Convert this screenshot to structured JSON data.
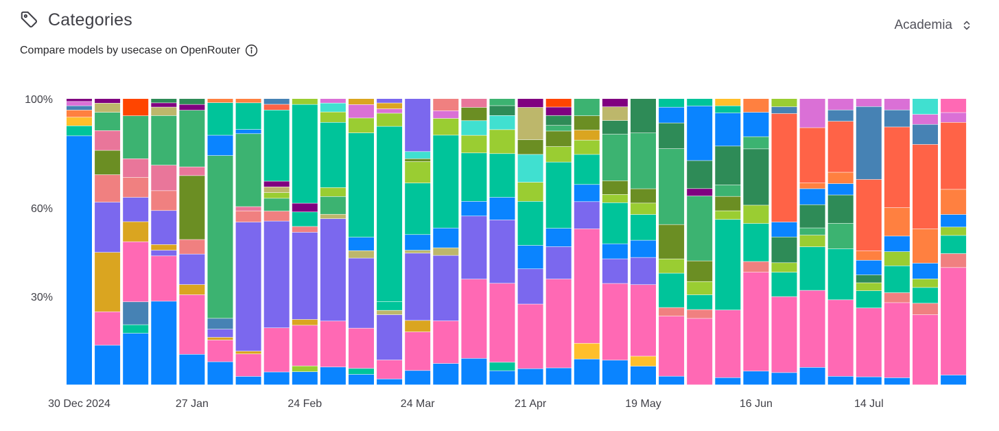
{
  "header": {
    "title": "Categories",
    "subtitle": "Compare models by usecase on OpenRouter"
  },
  "icons": {
    "title_icon": "tag-icon",
    "info_icon": "info-icon",
    "dropdown_icon": "chevron-up-down-icon"
  },
  "dropdown": {
    "selected": "Academia"
  },
  "colors": {
    "c1": "#0a84ff",
    "c2": "#ff69b4",
    "c3": "#7b68ee",
    "c4": "#00c49a",
    "c5": "#3cb371",
    "c6": "#2e8b57",
    "c7": "#6b8e23",
    "c8": "#9acd32",
    "c9": "#ff6347",
    "c10": "#f08080",
    "c11": "#4682b4",
    "c12": "#daa520",
    "c13": "#bdb76b",
    "c14": "#da70d6",
    "c15": "#40e0d0",
    "c16": "#800080",
    "c17": "#ff4500",
    "c18": "#e9769a",
    "c19": "#ffbf2b",
    "c20": "#ff8040"
  },
  "chart_data": {
    "type": "bar",
    "stacked": true,
    "percent": true,
    "ylim": [
      0,
      100
    ],
    "yticks": [
      "100%",
      "60%",
      "30%"
    ],
    "xlabels": [
      {
        "index": 0,
        "label": "30 Dec 2024"
      },
      {
        "index": 4,
        "label": "27 Jan"
      },
      {
        "index": 8,
        "label": "24 Feb"
      },
      {
        "index": 12,
        "label": "24 Mar"
      },
      {
        "index": 16,
        "label": "21 Apr"
      },
      {
        "index": 20,
        "label": "19 May"
      },
      {
        "index": 24,
        "label": "16 Jun"
      },
      {
        "index": 28,
        "label": "14 Jul"
      }
    ],
    "bars": [
      [
        [
          "c1",
          87
        ],
        [
          "c4",
          3.5
        ],
        [
          "c19",
          3
        ],
        [
          "c20",
          2.5
        ],
        [
          "c11",
          1.5
        ],
        [
          "c14",
          1.5
        ],
        [
          "c16",
          1
        ]
      ],
      [
        [
          "c1",
          13
        ],
        [
          "c2",
          11
        ],
        [
          "c12",
          19.5
        ],
        [
          "c3",
          16.5
        ],
        [
          "c10",
          9
        ],
        [
          "c7",
          8
        ],
        [
          "c18",
          6.5
        ],
        [
          "c5",
          6
        ],
        [
          "c13",
          3
        ],
        [
          "c16",
          1.5
        ]
      ],
      [
        [
          "c1",
          18
        ],
        [
          "c4",
          3
        ],
        [
          "c11",
          8
        ],
        [
          "c2",
          21
        ],
        [
          "c12",
          7
        ],
        [
          "c3",
          8.5
        ],
        [
          "c10",
          7
        ],
        [
          "c18",
          6.5
        ],
        [
          "c5",
          15
        ],
        [
          "c17",
          6
        ]
      ],
      [
        [
          "c1",
          29.5
        ],
        [
          "c2",
          16
        ],
        [
          "c3",
          2
        ],
        [
          "c12",
          2
        ],
        [
          "c3",
          12
        ],
        [
          "c10",
          7
        ],
        [
          "c18",
          9
        ],
        [
          "c5",
          17.5
        ],
        [
          "c13",
          3
        ],
        [
          "c16",
          1.5
        ],
        [
          "c6",
          1.5
        ]
      ],
      [
        [
          "c1",
          10.5
        ],
        [
          "c2",
          20.5
        ],
        [
          "c12",
          3.5
        ],
        [
          "c3",
          10.5
        ],
        [
          "c10",
          5
        ],
        [
          "c7",
          22
        ],
        [
          "c18",
          3
        ],
        [
          "c5",
          19.5
        ],
        [
          "c16",
          2
        ],
        [
          "c6",
          2
        ]
      ],
      [
        [
          "c1",
          8.5
        ],
        [
          "c2",
          8
        ],
        [
          "c12",
          1
        ],
        [
          "c3",
          3
        ],
        [
          "c11",
          4
        ],
        [
          "c5",
          60
        ],
        [
          "c1",
          7.5
        ],
        [
          "c4",
          12
        ],
        [
          "c20",
          1.5
        ]
      ],
      [
        [
          "c1",
          3
        ],
        [
          "c2",
          8
        ],
        [
          "c12",
          1
        ],
        [
          "c3",
          46
        ],
        [
          "c10",
          4
        ],
        [
          "c18",
          1.5
        ],
        [
          "c5",
          26
        ],
        [
          "c1",
          1.5
        ],
        [
          "c4",
          9.5
        ],
        [
          "c20",
          1.5
        ]
      ],
      [
        [
          "c1",
          4.5
        ],
        [
          "c2",
          15.5
        ],
        [
          "c3",
          37.5
        ],
        [
          "c10",
          3.5
        ],
        [
          "c5",
          4.5
        ],
        [
          "c8",
          2
        ],
        [
          "c13",
          2
        ],
        [
          "c16",
          2
        ],
        [
          "c4",
          25
        ],
        [
          "c9",
          2
        ],
        [
          "c11",
          2
        ]
      ],
      [
        [
          "c1",
          4.5
        ],
        [
          "c8",
          2
        ],
        [
          "c2",
          14
        ],
        [
          "c12",
          2
        ],
        [
          "c3",
          30
        ],
        [
          "c10",
          2
        ],
        [
          "c4",
          5
        ],
        [
          "c16",
          3
        ],
        [
          "c4",
          34
        ],
        [
          "c8",
          2
        ]
      ],
      [
        [
          "c1",
          6
        ],
        [
          "c2",
          15.5
        ],
        [
          "c3",
          34.5
        ],
        [
          "c13",
          1.5
        ],
        [
          "c5",
          6
        ],
        [
          "c8",
          3
        ],
        [
          "c4",
          22
        ],
        [
          "c8",
          3.5
        ],
        [
          "c15",
          3
        ],
        [
          "c14",
          1.5
        ]
      ],
      [
        [
          "c1",
          3.5
        ],
        [
          "c4",
          2
        ],
        [
          "c2",
          13.5
        ],
        [
          "c3",
          23.5
        ],
        [
          "c13",
          2.5
        ],
        [
          "c1",
          4.5
        ],
        [
          "c4",
          35
        ],
        [
          "c8",
          5
        ],
        [
          "c14",
          4.5
        ],
        [
          "c12",
          2
        ]
      ],
      [
        [
          "c1",
          2
        ],
        [
          "c2",
          6.5
        ],
        [
          "c3",
          15.5
        ],
        [
          "c13",
          1.5
        ],
        [
          "c4",
          3
        ],
        [
          "c4",
          60
        ],
        [
          "c8",
          4.5
        ],
        [
          "c14",
          1.5
        ],
        [
          "c12",
          2
        ],
        [
          "c3",
          1.5
        ]
      ],
      [
        [
          "c1",
          5
        ],
        [
          "c2",
          13.5
        ],
        [
          "c12",
          4
        ],
        [
          "c3",
          23.5
        ],
        [
          "c13",
          1
        ],
        [
          "c1",
          5.5
        ],
        [
          "c4",
          18
        ],
        [
          "c8",
          7.5
        ],
        [
          "c7",
          1
        ],
        [
          "c15",
          2.5
        ],
        [
          "c3",
          18.5
        ]
      ],
      [
        [
          "c1",
          7
        ],
        [
          "c2",
          14
        ],
        [
          "c3",
          21.5
        ],
        [
          "c13",
          2.5
        ],
        [
          "c1",
          6.5
        ],
        [
          "c4",
          30.5
        ],
        [
          "c8",
          5.5
        ],
        [
          "c14",
          2.5
        ],
        [
          "c10",
          4
        ]
      ],
      [
        [
          "c1",
          9
        ],
        [
          "c2",
          27
        ],
        [
          "c3",
          21.5
        ],
        [
          "c1",
          5
        ],
        [
          "c4",
          16.5
        ],
        [
          "c8",
          6
        ],
        [
          "c15",
          5
        ],
        [
          "c7",
          4.5
        ],
        [
          "c18",
          3
        ]
      ],
      [
        [
          "c1",
          5
        ],
        [
          "c4",
          3
        ],
        [
          "c2",
          28
        ],
        [
          "c3",
          22.5
        ],
        [
          "c1",
          8
        ],
        [
          "c4",
          15.5
        ],
        [
          "c8",
          8.5
        ],
        [
          "c15",
          5
        ],
        [
          "c6",
          3.5
        ],
        [
          "c5",
          2.5
        ]
      ],
      [
        [
          "c1",
          5.5
        ],
        [
          "c2",
          22
        ],
        [
          "c3",
          12
        ],
        [
          "c1",
          8
        ],
        [
          "c4",
          15
        ],
        [
          "c8",
          6.5
        ],
        [
          "c15",
          9.5
        ],
        [
          "c7",
          5
        ],
        [
          "c13",
          11
        ],
        [
          "c16",
          3
        ]
      ],
      [
        [
          "c1",
          6
        ],
        [
          "c2",
          31.5
        ],
        [
          "c3",
          11.5
        ],
        [
          "c1",
          6.5
        ],
        [
          "c4",
          23.5
        ],
        [
          "c8",
          5.5
        ],
        [
          "c7",
          5.5
        ],
        [
          "c5",
          2
        ],
        [
          "c6",
          3.5
        ],
        [
          "c16",
          3
        ],
        [
          "c17",
          3
        ]
      ],
      [
        [
          "c1",
          9
        ],
        [
          "c19",
          5.5
        ],
        [
          "c2",
          40
        ],
        [
          "c3",
          9.5
        ],
        [
          "c1",
          6
        ],
        [
          "c4",
          10.5
        ],
        [
          "c8",
          5
        ],
        [
          "c12",
          3.5
        ],
        [
          "c7",
          5
        ],
        [
          "c5",
          6
        ]
      ],
      [
        [
          "c1",
          9
        ],
        [
          "c2",
          28
        ],
        [
          "c3",
          9
        ],
        [
          "c1",
          5.5
        ],
        [
          "c4",
          15
        ],
        [
          "c8",
          3
        ],
        [
          "c7",
          5
        ],
        [
          "c5",
          17
        ],
        [
          "c6",
          5
        ],
        [
          "c13",
          5
        ],
        [
          "c16",
          3
        ]
      ],
      [
        [
          "c1",
          6.5
        ],
        [
          "c19",
          3.5
        ],
        [
          "c2",
          25
        ],
        [
          "c3",
          9.5
        ],
        [
          "c1",
          6
        ],
        [
          "c4",
          9
        ],
        [
          "c8",
          4
        ],
        [
          "c7",
          5
        ],
        [
          "c5",
          19.5
        ],
        [
          "c6",
          12
        ]
      ],
      [
        [
          "c1",
          3
        ],
        [
          "c2",
          21
        ],
        [
          "c10",
          3
        ],
        [
          "c4",
          12
        ],
        [
          "c8",
          5
        ],
        [
          "c7",
          12
        ],
        [
          "c5",
          26.5
        ],
        [
          "c6",
          9
        ],
        [
          "c1",
          5.5
        ],
        [
          "c4",
          3
        ]
      ],
      [
        [
          "c2",
          22.5
        ],
        [
          "c10",
          3
        ],
        [
          "c4",
          5
        ],
        [
          "c8",
          4.5
        ],
        [
          "c7",
          7
        ],
        [
          "c5",
          22
        ],
        [
          "c16",
          2.5
        ],
        [
          "c6",
          9.5
        ],
        [
          "c1",
          18.5
        ],
        [
          "c4",
          2.5
        ]
      ],
      [
        [
          "c1",
          2.5
        ],
        [
          "c2",
          23.5
        ],
        [
          "c4",
          31.5
        ],
        [
          "c8",
          3
        ],
        [
          "c7",
          5
        ],
        [
          "c5",
          4
        ],
        [
          "c6",
          13.5
        ],
        [
          "c1",
          11.5
        ],
        [
          "c4",
          2.5
        ],
        [
          "c19",
          2.5
        ]
      ],
      [
        [
          "c1",
          4.5
        ],
        [
          "c2",
          32.5
        ],
        [
          "c10",
          3.5
        ],
        [
          "c4",
          12.5
        ],
        [
          "c8",
          6
        ],
        [
          "c6",
          18.5
        ],
        [
          "c5",
          4
        ],
        [
          "c1",
          8
        ],
        [
          "c20",
          4.5
        ]
      ],
      [
        [
          "c1",
          4.5
        ],
        [
          "c2",
          28
        ],
        [
          "c4",
          9
        ],
        [
          "c8",
          3.5
        ],
        [
          "c6",
          9.5
        ],
        [
          "c1",
          5.5
        ],
        [
          "c9",
          40
        ],
        [
          "c11",
          2.5
        ],
        [
          "c8",
          3
        ]
      ],
      [
        [
          "c1",
          6
        ],
        [
          "c2",
          26.5
        ],
        [
          "c4",
          15
        ],
        [
          "c8",
          4
        ],
        [
          "c5",
          2.5
        ],
        [
          "c6",
          8
        ],
        [
          "c1",
          5.5
        ],
        [
          "c20",
          2
        ],
        [
          "c9",
          19
        ],
        [
          "c14",
          10
        ]
      ],
      [
        [
          "c1",
          3
        ],
        [
          "c2",
          27
        ],
        [
          "c4",
          18
        ],
        [
          "c5",
          9
        ],
        [
          "c6",
          10
        ],
        [
          "c1",
          4
        ],
        [
          "c20",
          4
        ],
        [
          "c9",
          18
        ],
        [
          "c11",
          4
        ],
        [
          "c14",
          4
        ]
      ],
      [
        [
          "c1",
          3
        ],
        [
          "c2",
          26
        ],
        [
          "c4",
          6.5
        ],
        [
          "c8",
          3
        ],
        [
          "c6",
          3
        ],
        [
          "c1",
          5.5
        ],
        [
          "c20",
          3.5
        ],
        [
          "c9",
          27
        ],
        [
          "c11",
          27.5
        ],
        [
          "c14",
          3
        ]
      ],
      [
        [
          "c1",
          2.5
        ],
        [
          "c2",
          26.5
        ],
        [
          "c10",
          3.5
        ],
        [
          "c4",
          9.5
        ],
        [
          "c8",
          5
        ],
        [
          "c1",
          5.5
        ],
        [
          "c20",
          10
        ],
        [
          "c9",
          28.5
        ],
        [
          "c11",
          6
        ],
        [
          "c14",
          4
        ]
      ],
      [
        [
          "c2",
          24.5
        ],
        [
          "c10",
          4
        ],
        [
          "c4",
          5.5
        ],
        [
          "c8",
          3
        ],
        [
          "c1",
          5.5
        ],
        [
          "c20",
          12
        ],
        [
          "c9",
          29.5
        ],
        [
          "c11",
          7
        ],
        [
          "c14",
          3.5
        ],
        [
          "c15",
          5.5
        ]
      ],
      [
        [
          "c1",
          3.5
        ],
        [
          "c2",
          38.5
        ],
        [
          "c10",
          5
        ],
        [
          "c4",
          6.5
        ],
        [
          "c8",
          3
        ],
        [
          "c1",
          4.5
        ],
        [
          "c20",
          9
        ],
        [
          "c9",
          24
        ],
        [
          "c14",
          3.5
        ],
        [
          "c2",
          5
        ]
      ]
    ]
  }
}
